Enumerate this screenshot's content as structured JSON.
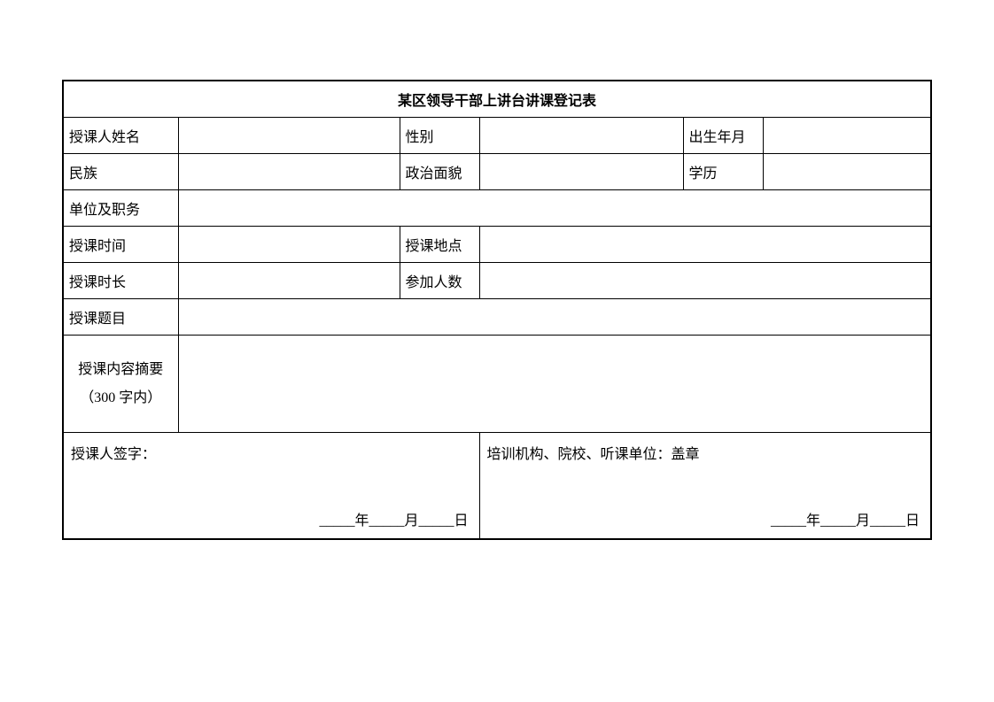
{
  "form": {
    "title": "某区领导干部上讲台讲课登记表",
    "labels": {
      "name": "授课人姓名",
      "gender": "性别",
      "birth": "出生年月",
      "ethnicity": "民族",
      "political": "政治面貌",
      "education": "学历",
      "unit_position": "单位及职务",
      "lecture_time": "授课时间",
      "lecture_place": "授课地点",
      "lecture_duration": "授课时长",
      "attendees": "参加人数",
      "lecture_topic": "授课题目",
      "content_summary_line1": "授课内容摘要",
      "content_summary_line2": "（300 字内）",
      "lecturer_sign": "授课人签字：",
      "org_stamp": "培训机构、院校、听课单位：盖章"
    },
    "date_template": "_____年_____月_____日",
    "values": {
      "name": "",
      "gender": "",
      "birth": "",
      "ethnicity": "",
      "political": "",
      "education": "",
      "unit_position": "",
      "lecture_time": "",
      "lecture_place": "",
      "lecture_duration": "",
      "attendees": "",
      "lecture_topic": "",
      "content_summary": ""
    },
    "style": {
      "border_color": "#000000",
      "background_color": "#ffffff",
      "text_color": "#000000",
      "title_fontsize": 20,
      "label_fontsize": 16,
      "font_family": "SimSun"
    }
  }
}
